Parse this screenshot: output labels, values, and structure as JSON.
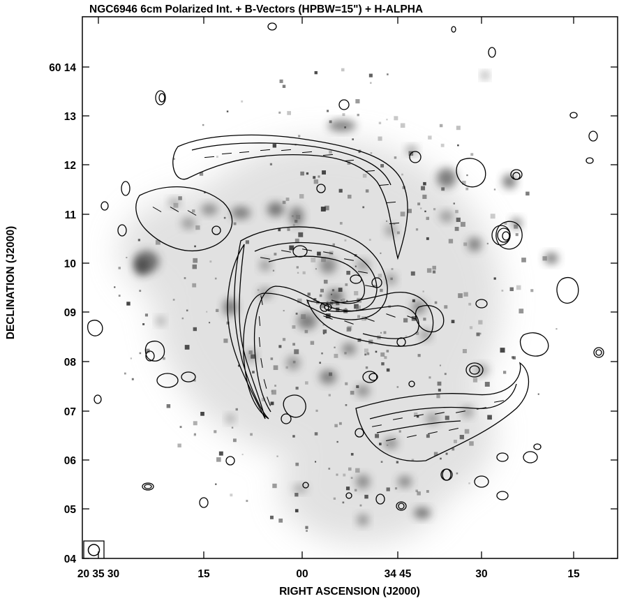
{
  "title": "NGC6946   6cm   Polarized Int. + B-Vectors  (HPBW=15\")   +   H-ALPHA",
  "x_axis": {
    "label": "RIGHT ASCENSION (J2000)",
    "ticks": [
      {
        "value": "20 35 30",
        "label": "20 35 30"
      },
      {
        "value": "20 35 15",
        "label": "15"
      },
      {
        "value": "20 35 00",
        "label": "00"
      },
      {
        "value": "20 34 45",
        "label": "34 45"
      },
      {
        "value": "20 34 30",
        "label": "30"
      },
      {
        "value": "20 34 15",
        "label": "15"
      }
    ]
  },
  "y_axis": {
    "label": "DECLINATION (J2000)",
    "ticks": [
      {
        "value": "60 04",
        "label": "04"
      },
      {
        "value": "60 05",
        "label": "05"
      },
      {
        "value": "60 06",
        "label": "06"
      },
      {
        "value": "60 07",
        "label": "07"
      },
      {
        "value": "60 08",
        "label": "08"
      },
      {
        "value": "60 09",
        "label": "09"
      },
      {
        "value": "60 10",
        "label": "10"
      },
      {
        "value": "60 11",
        "label": "11"
      },
      {
        "value": "60 12",
        "label": "12"
      },
      {
        "value": "60 13",
        "label": "13"
      },
      {
        "value": "60 14",
        "label": "60 14"
      }
    ]
  },
  "colors": {
    "background": "#ffffff",
    "contour": "#000000",
    "halpha_gray": "#3a3a3a",
    "halpha_light": "#b8b8b8"
  },
  "icons": {
    "beam": "beam-ellipse-icon"
  }
}
